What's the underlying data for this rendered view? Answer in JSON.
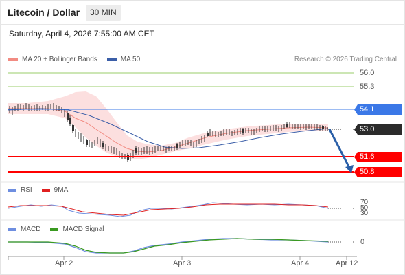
{
  "header": {
    "title": "Litecoin / Dollar",
    "interval": "30 MIN"
  },
  "datetime": "Saturday, April 4, 2026 7:55:00 AM CET",
  "legend_main": {
    "bb_label": "MA 20 + Bollinger Bands",
    "ma50_label": "MA 50",
    "bb_color": "#f28b82",
    "ma50_color": "#3b5ea8"
  },
  "copyright": "Research © 2026 Trading Central",
  "levels": [
    {
      "value": "56.0",
      "style": "plain",
      "line_color": "#9acd6a"
    },
    {
      "value": "55.3",
      "style": "plain",
      "line_color": "#9acd6a"
    },
    {
      "value": "54.1",
      "style": "box",
      "line_color": "#3b78e7",
      "box_color": "#3b78e7"
    },
    {
      "value": "53.0",
      "style": "box",
      "line_color": "#333333",
      "box_color": "#2b2b2b"
    },
    {
      "value": "51.6",
      "style": "box",
      "line_color": "#ff0000",
      "box_color": "#ff0000"
    },
    {
      "value": "50.8",
      "style": "box",
      "line_color": "#ff0000",
      "box_color": "#ff0000"
    }
  ],
  "legend_rsi": {
    "rsi_label": "RSI",
    "ma_label": "9MA",
    "rsi_color": "#6e8ee0",
    "ma_color": "#e02020"
  },
  "rsi_levels": [
    "70",
    "50",
    "30"
  ],
  "legend_macd": {
    "macd_label": "MACD",
    "signal_label": "MACD Signal",
    "macd_color": "#6e8ee0",
    "signal_color": "#3a9a20"
  },
  "macd_zero": "0",
  "x_axis": [
    "Apr 2",
    "Apr 3",
    "Apr 4",
    "Apr 12"
  ]
}
